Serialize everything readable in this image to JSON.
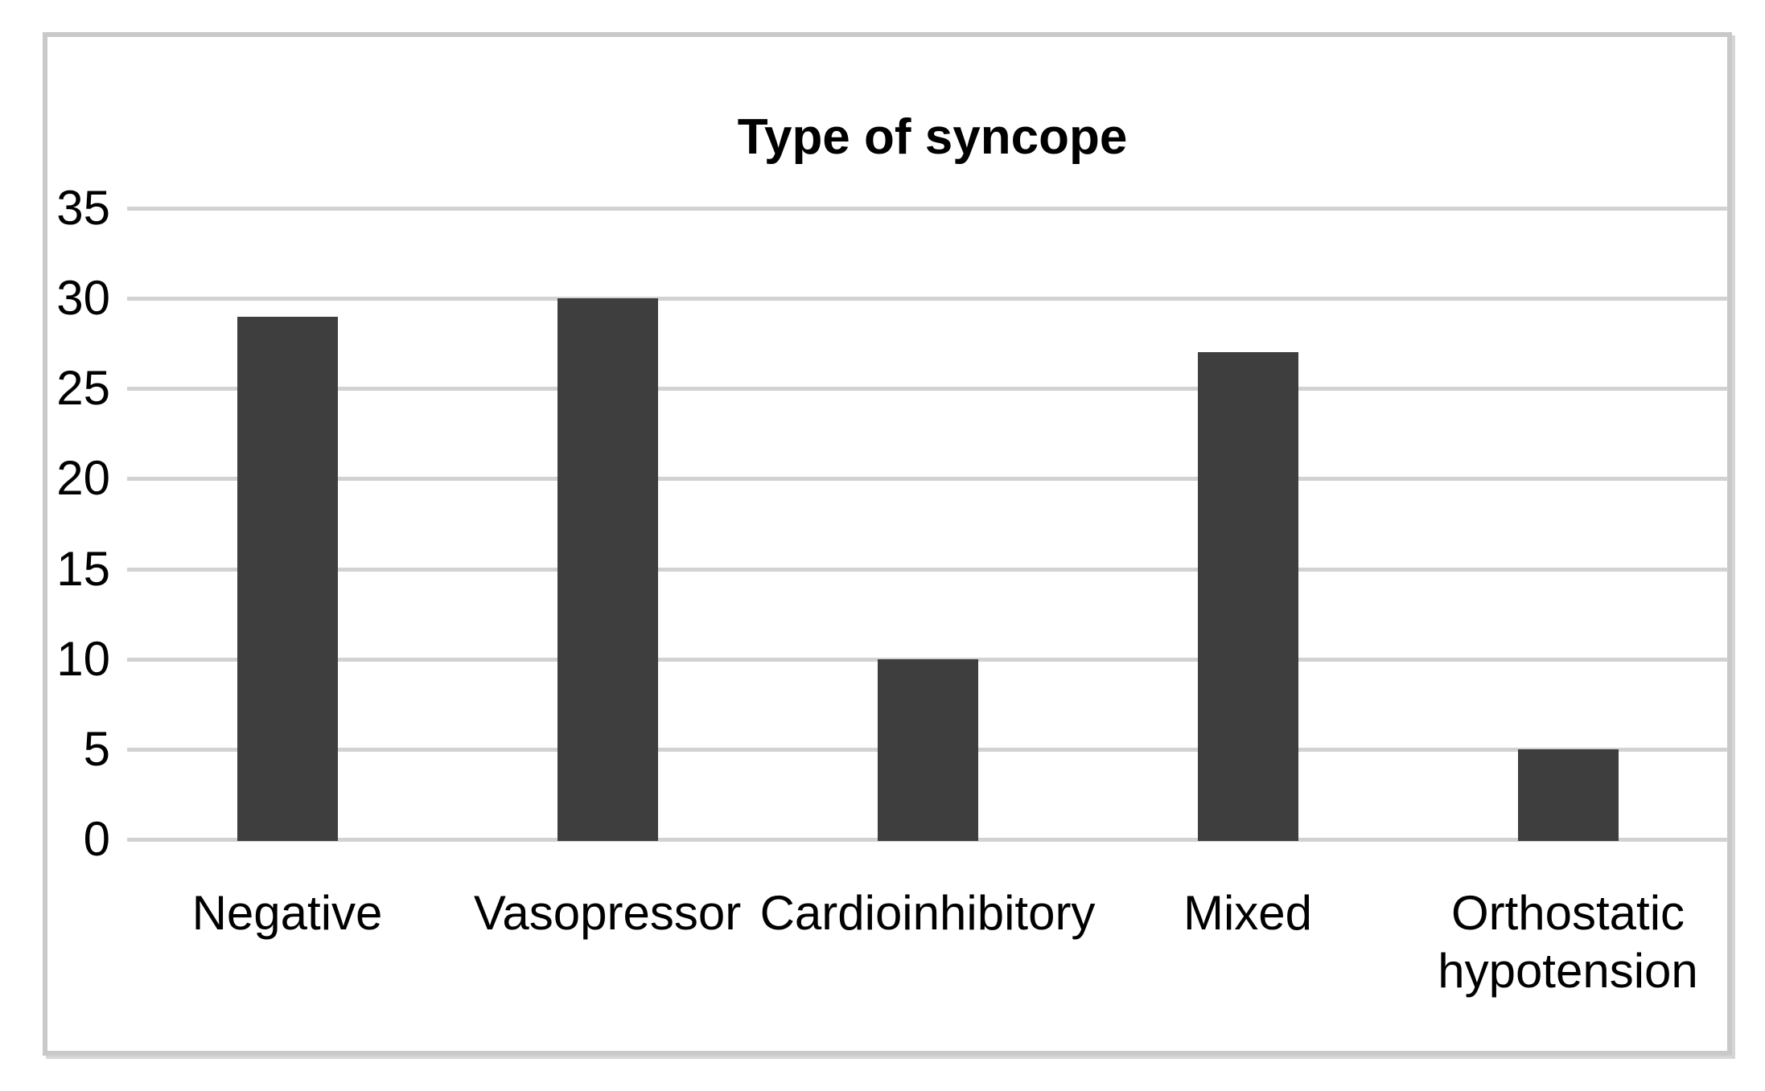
{
  "chart_data": {
    "type": "bar",
    "title": "Type of syncope",
    "categories": [
      "Negative",
      "Vasopressor",
      "Cardioinhibitory",
      "Mixed",
      "Orthostatic hypotension"
    ],
    "values": [
      29,
      30,
      10,
      27,
      5
    ],
    "yticks": [
      0,
      5,
      10,
      15,
      20,
      25,
      30,
      35
    ],
    "ylim": [
      0,
      35
    ],
    "xlabel": "",
    "ylabel": "",
    "grid": "horizontal-only",
    "legend": "none",
    "bar_color": "#3e3e3e",
    "gridline_color": "#d2d2d2",
    "frame_border_color": "#c9c9c9",
    "background_color": "#ffffff",
    "text_color": "#000000"
  }
}
